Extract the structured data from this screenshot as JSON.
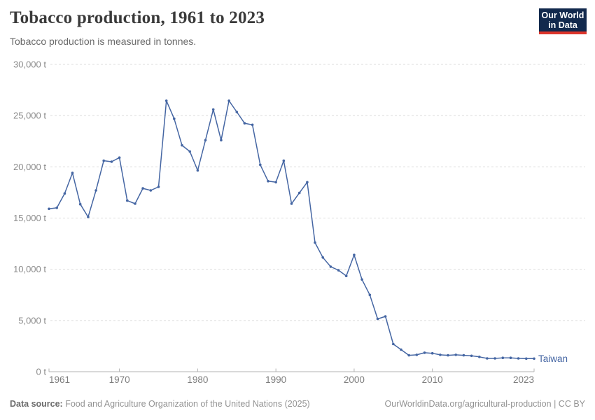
{
  "header": {
    "title": "Tobacco production, 1961 to 2023",
    "subtitle": "Tobacco production is measured in tonnes."
  },
  "logo": {
    "line1": "Our World",
    "line2": "in Data",
    "bg_color": "#12294d",
    "accent_color": "#dd352b"
  },
  "chart_data": {
    "type": "line",
    "title": "Tobacco production, 1961 to 2023",
    "subtitle": "Tobacco production is measured in tonnes.",
    "xlabel": "",
    "ylabel": "",
    "unit": "tonnes",
    "grid": true,
    "gridline_color": "#dcdcdc",
    "axis_color": "#b3b3b3",
    "tick_label_color": "#8b8b8b",
    "xlim": [
      1961,
      2023
    ],
    "ylim": [
      0,
      30000
    ],
    "yticks": [
      {
        "value": 0,
        "label": "0 t"
      },
      {
        "value": 5000,
        "label": "5,000 t"
      },
      {
        "value": 10000,
        "label": "10,000 t"
      },
      {
        "value": 15000,
        "label": "15,000 t"
      },
      {
        "value": 20000,
        "label": "20,000 t"
      },
      {
        "value": 25000,
        "label": "25,000 t"
      },
      {
        "value": 30000,
        "label": "30,000 t"
      }
    ],
    "xticks": [
      {
        "value": 1961,
        "label": "1961"
      },
      {
        "value": 1970,
        "label": "1970"
      },
      {
        "value": 1980,
        "label": "1980"
      },
      {
        "value": 1990,
        "label": "1990"
      },
      {
        "value": 2000,
        "label": "2000"
      },
      {
        "value": 2010,
        "label": "2010"
      },
      {
        "value": 2023,
        "label": "2023"
      }
    ],
    "legend_position": "end-of-line",
    "series": [
      {
        "name": "Taiwan",
        "color": "#4566a3",
        "x": [
          1961,
          1962,
          1963,
          1964,
          1965,
          1966,
          1967,
          1968,
          1969,
          1970,
          1971,
          1972,
          1973,
          1974,
          1975,
          1976,
          1977,
          1978,
          1979,
          1980,
          1981,
          1982,
          1983,
          1984,
          1985,
          1986,
          1987,
          1988,
          1989,
          1990,
          1991,
          1992,
          1993,
          1994,
          1995,
          1996,
          1997,
          1998,
          1999,
          2000,
          2001,
          2002,
          2003,
          2004,
          2005,
          2006,
          2007,
          2008,
          2009,
          2010,
          2011,
          2012,
          2013,
          2014,
          2015,
          2016,
          2017,
          2018,
          2019,
          2020,
          2021,
          2022,
          2023
        ],
        "values": [
          15900,
          16000,
          17400,
          19400,
          16350,
          15100,
          17700,
          20600,
          20500,
          20900,
          16700,
          16400,
          17900,
          17700,
          18050,
          26450,
          24700,
          22100,
          21500,
          19650,
          22600,
          25600,
          22600,
          26450,
          25350,
          24250,
          24100,
          20200,
          18600,
          18500,
          20600,
          16400,
          17450,
          18500,
          12600,
          11150,
          10250,
          9900,
          9350,
          11400,
          9000,
          7500,
          5150,
          5400,
          2700,
          2150,
          1600,
          1650,
          1850,
          1800,
          1650,
          1600,
          1650,
          1600,
          1550,
          1450,
          1300,
          1300,
          1350,
          1350,
          1300,
          1280,
          1280
        ]
      }
    ]
  },
  "footer": {
    "source_label": "Data source:",
    "source_text": " Food and Agriculture Organization of the United Nations (2025)",
    "url": "OurWorldinData.org/agricultural-production",
    "separator": " | ",
    "license": "CC BY"
  }
}
